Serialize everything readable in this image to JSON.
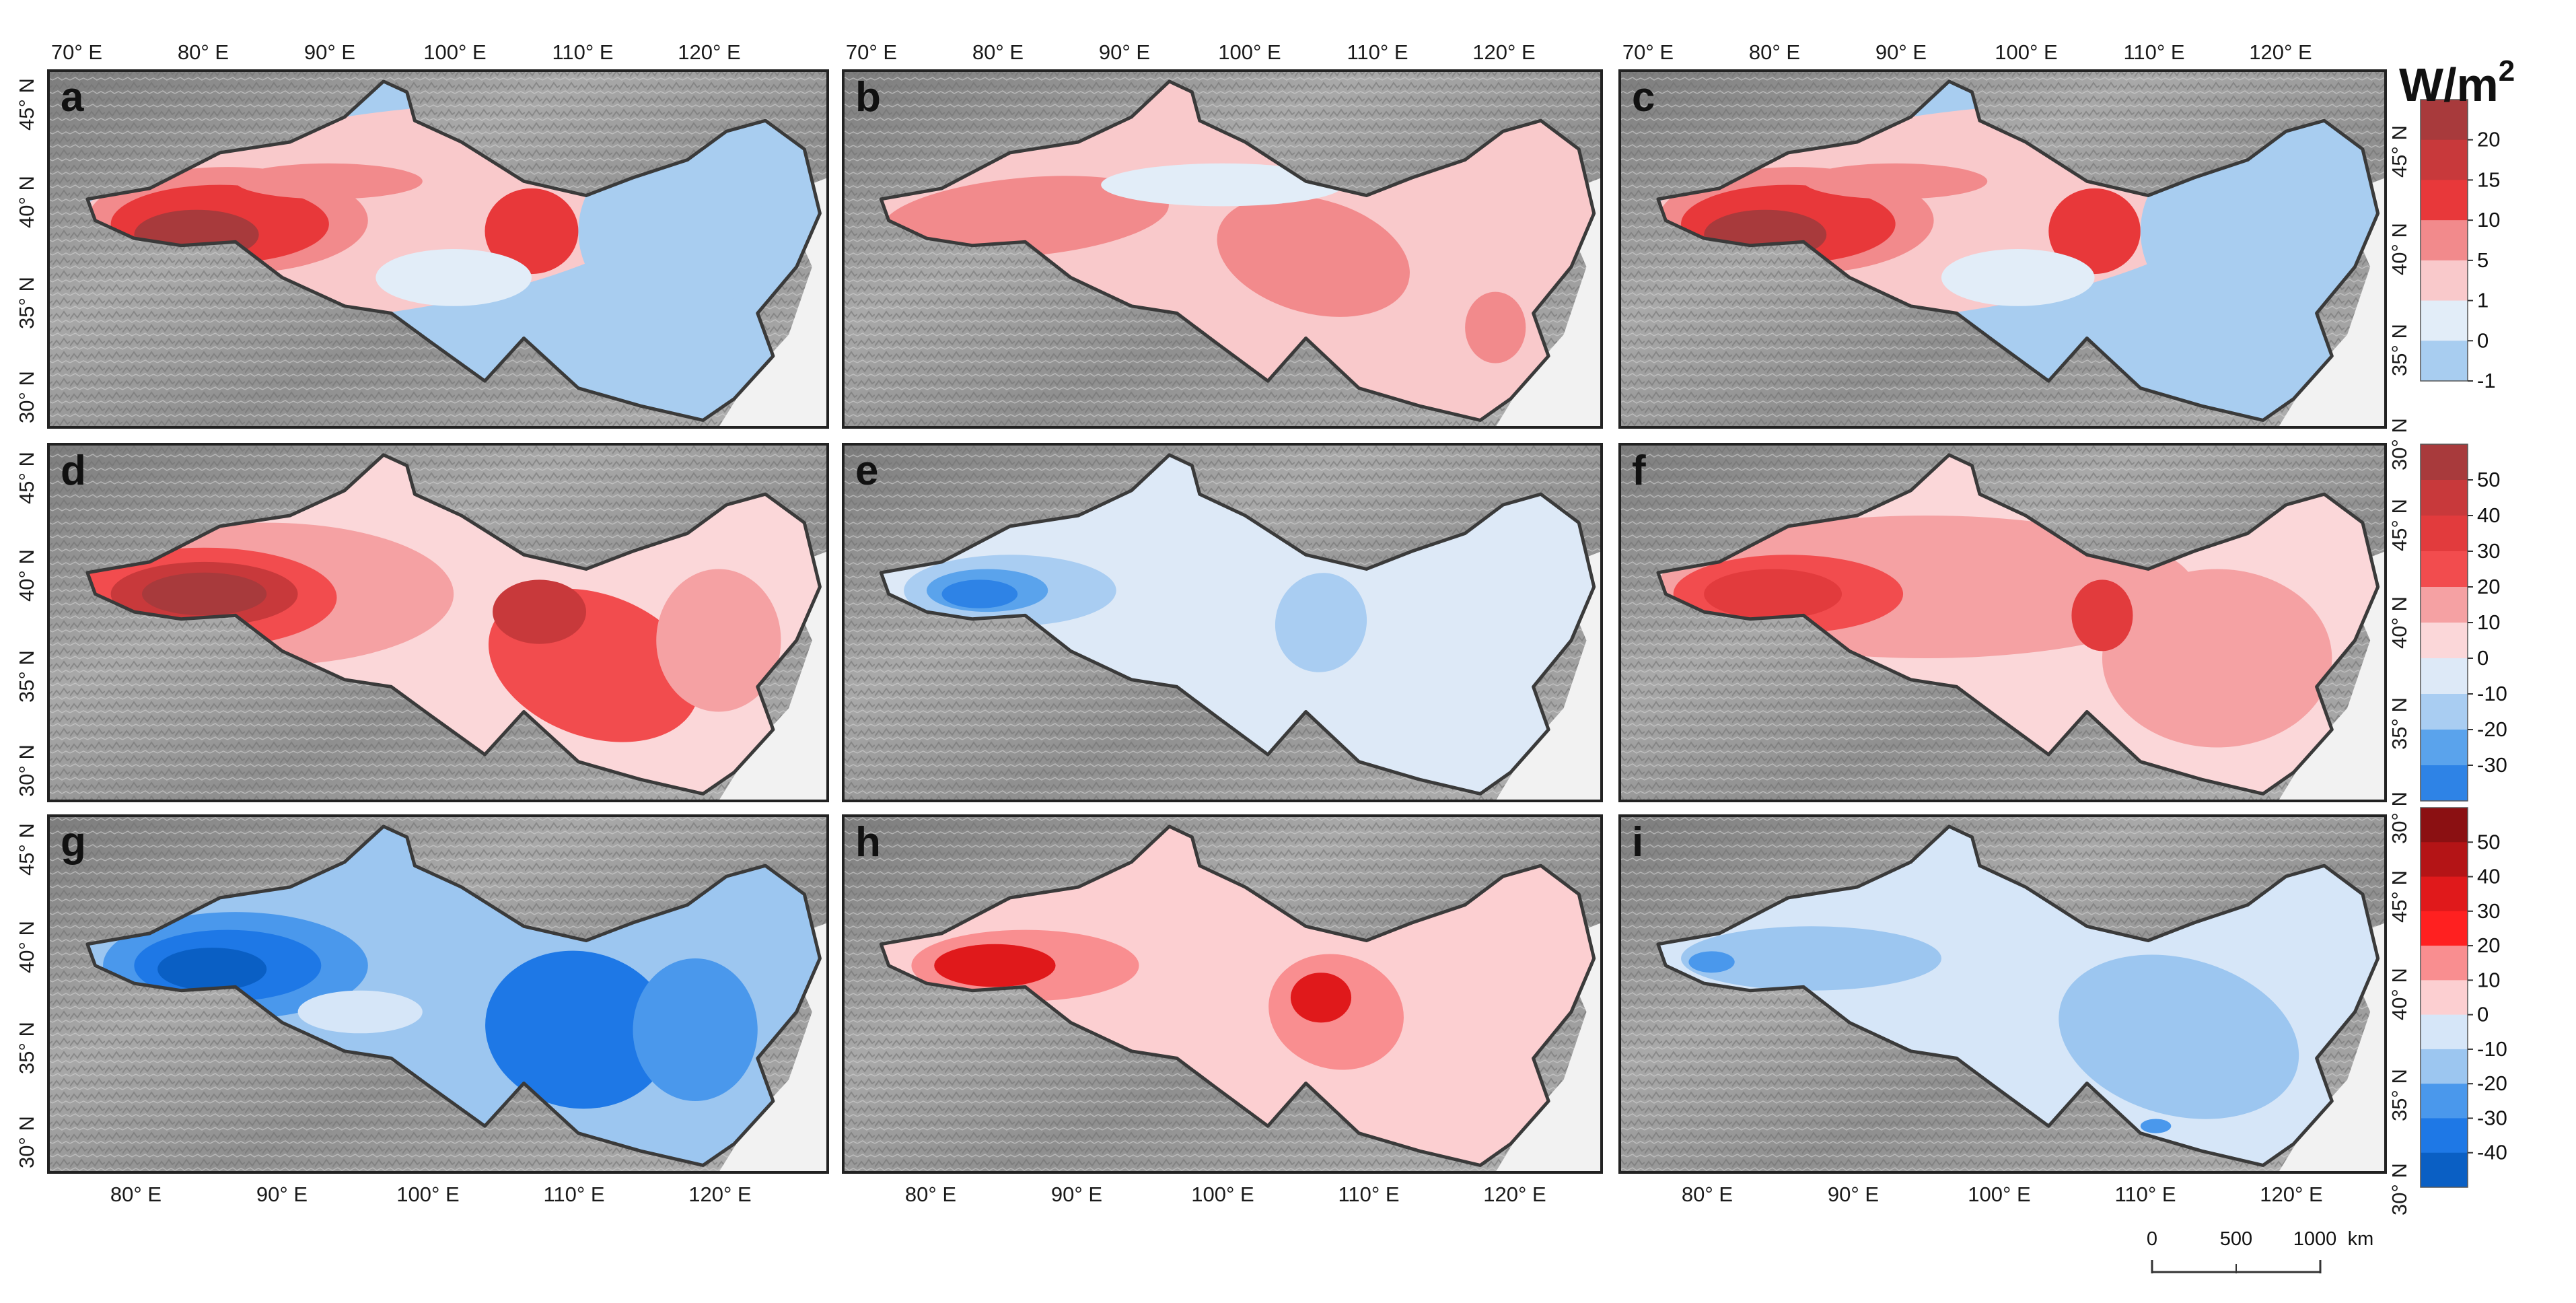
{
  "figure": {
    "unit_label": "W/m",
    "unit_superscript": "2",
    "top_lon_ticks": [
      "70° E",
      "80° E",
      "90° E",
      "100° E",
      "110° E",
      "120° E"
    ],
    "bottom_lon_ticks": [
      "80° E",
      "90° E",
      "100° E",
      "110° E",
      "120° E"
    ],
    "left_lat_ticks": [
      "45° N",
      "40° N",
      "35° N",
      "30° N"
    ],
    "right_lat_ticks": [
      "45° N",
      "40° N",
      "35° N",
      "30° N"
    ]
  },
  "panels": [
    {
      "id": "a",
      "label": "a",
      "legend": 0,
      "pattern": "mixed-west-red-east-blue"
    },
    {
      "id": "b",
      "label": "b",
      "legend": 0,
      "pattern": "all-light-red"
    },
    {
      "id": "c",
      "label": "c",
      "legend": 0,
      "pattern": "mixed-west-red-east-blue"
    },
    {
      "id": "d",
      "label": "d",
      "legend": 1,
      "pattern": "strong-red"
    },
    {
      "id": "e",
      "label": "e",
      "legend": 1,
      "pattern": "light-blue"
    },
    {
      "id": "f",
      "label": "f",
      "legend": 1,
      "pattern": "medium-red"
    },
    {
      "id": "g",
      "label": "g",
      "legend": 2,
      "pattern": "strong-blue"
    },
    {
      "id": "h",
      "label": "h",
      "legend": 2,
      "pattern": "light-red-hotspots"
    },
    {
      "id": "i",
      "label": "i",
      "legend": 2,
      "pattern": "light-blue-east"
    }
  ],
  "legends": [
    {
      "labels": [
        "20",
        "15",
        "10",
        "5",
        "1",
        "0",
        "-1"
      ],
      "colors": [
        "#a83a3c",
        "#c8393b",
        "#e8383a",
        "#f28a8c",
        "#f9c9cb",
        "#e2edf8",
        "#a8cdf0"
      ]
    },
    {
      "labels": [
        "50",
        "40",
        "30",
        "20",
        "10",
        "0",
        "-10",
        "-20",
        "-30"
      ],
      "colors": [
        "#a83a3c",
        "#c8393b",
        "#e23b3d",
        "#f24c4e",
        "#f5a1a3",
        "#fbd7d9",
        "#dde9f7",
        "#a9cdf2",
        "#5aa3ec",
        "#2e83e6"
      ]
    },
    {
      "labels": [
        "50",
        "40",
        "30",
        "20",
        "10",
        "0",
        "-10",
        "-20",
        "-30",
        "-40"
      ],
      "colors": [
        "#8b1012",
        "#b41416",
        "#e0191b",
        "#ff2020",
        "#f98e90",
        "#fccfd1",
        "#d6e6f8",
        "#9cc6f0",
        "#4a98ec",
        "#1e78e6",
        "#0a5fc4"
      ]
    }
  ],
  "scale_bar": {
    "ticks": [
      "0",
      "500",
      "1000"
    ],
    "unit": "km"
  }
}
